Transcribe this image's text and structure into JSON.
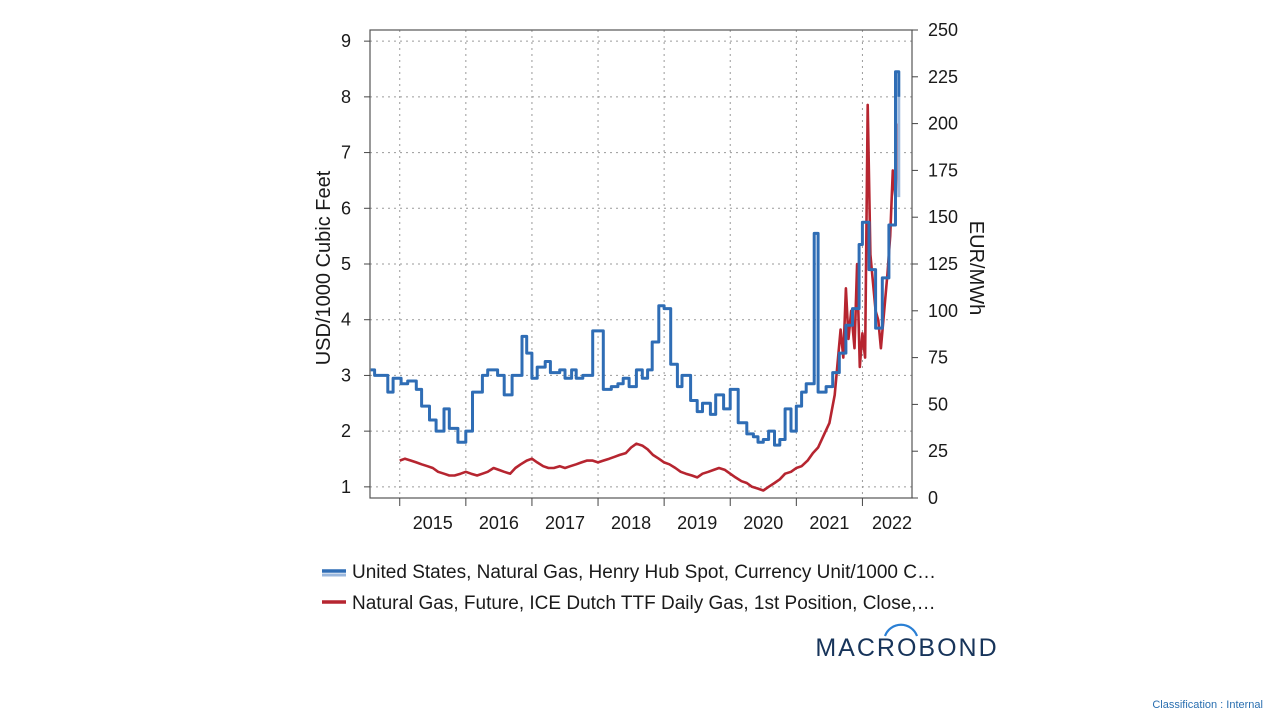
{
  "chart_data": {
    "type": "line",
    "y_left": {
      "label": "USD/1000 Cubic Feet",
      "range": [
        0.8,
        9.2
      ],
      "ticks": [
        1,
        2,
        3,
        4,
        5,
        6,
        7,
        8,
        9
      ]
    },
    "y_right": {
      "label": "EUR/MWh",
      "range": [
        0,
        250
      ],
      "ticks": [
        0,
        25,
        50,
        75,
        100,
        125,
        150,
        175,
        200,
        225,
        250
      ]
    },
    "x_axis": {
      "range": [
        2014.55,
        2022.75
      ],
      "tick_labels": [
        "2015",
        "2016",
        "2017",
        "2018",
        "2019",
        "2020",
        "2021",
        "2022"
      ],
      "tick_label_years": [
        2015,
        2016,
        2017,
        2018,
        2019,
        2020,
        2021,
        2022
      ],
      "year_boundaries": [
        2015,
        2016,
        2017,
        2018,
        2019,
        2020,
        2021,
        2022
      ],
      "grid": true
    },
    "series": [
      {
        "name": "United States, Natural Gas, Henry Hub Spot, Currency Unit/1000 C…",
        "axis": "left",
        "step": true,
        "color": "#2f6db5",
        "last_segment_color": "#9ab7dd",
        "x": [
          2014.56,
          2014.62,
          2014.82,
          2014.9,
          2015.02,
          2015.12,
          2015.25,
          2015.33,
          2015.45,
          2015.55,
          2015.67,
          2015.75,
          2015.88,
          2016.0,
          2016.1,
          2016.25,
          2016.33,
          2016.48,
          2016.58,
          2016.7,
          2016.85,
          2016.92,
          2017.0,
          2017.08,
          2017.2,
          2017.28,
          2017.42,
          2017.5,
          2017.6,
          2017.67,
          2017.77,
          2017.92,
          2018.08,
          2018.2,
          2018.3,
          2018.38,
          2018.47,
          2018.58,
          2018.67,
          2018.75,
          2018.82,
          2018.92,
          2019.0,
          2019.1,
          2019.2,
          2019.27,
          2019.4,
          2019.5,
          2019.58,
          2019.7,
          2019.78,
          2019.9,
          2020.0,
          2020.12,
          2020.25,
          2020.35,
          2020.42,
          2020.5,
          2020.58,
          2020.67,
          2020.75,
          2020.83,
          2020.92,
          2021.0,
          2021.08,
          2021.15,
          2021.27,
          2021.33,
          2021.45,
          2021.55,
          2021.65,
          2021.75,
          2021.85,
          2021.95,
          2022.0,
          2022.1,
          2022.2,
          2022.3,
          2022.4,
          2022.5,
          2022.55
        ],
        "values": [
          3.1,
          3.0,
          2.7,
          2.95,
          2.85,
          2.9,
          2.75,
          2.45,
          2.2,
          2.0,
          2.4,
          2.05,
          1.8,
          2.0,
          2.7,
          3.0,
          3.1,
          3.0,
          2.65,
          3.0,
          3.7,
          3.4,
          2.95,
          3.15,
          3.25,
          3.05,
          3.1,
          2.95,
          3.1,
          2.95,
          3.0,
          3.8,
          2.75,
          2.8,
          2.85,
          2.95,
          2.8,
          3.1,
          2.95,
          3.1,
          3.6,
          4.25,
          4.2,
          3.2,
          2.8,
          3.0,
          2.55,
          2.35,
          2.5,
          2.3,
          2.65,
          2.4,
          2.75,
          2.15,
          1.95,
          1.9,
          1.8,
          1.85,
          2.0,
          1.75,
          1.85,
          2.4,
          2.0,
          2.45,
          2.7,
          2.85,
          5.55,
          2.7,
          2.8,
          3.05,
          3.4,
          3.9,
          4.2,
          5.35,
          5.75,
          4.9,
          3.85,
          4.75,
          5.7,
          8.45,
          8.0
        ]
      },
      {
        "name": "Natural Gas, Future, ICE Dutch TTF Daily Gas, 1st Position, Close,…",
        "axis": "right",
        "step": false,
        "color": "#b62530",
        "x": [
          2015.0,
          2015.08,
          2015.17,
          2015.25,
          2015.33,
          2015.42,
          2015.5,
          2015.58,
          2015.67,
          2015.75,
          2015.83,
          2015.92,
          2016.0,
          2016.08,
          2016.17,
          2016.25,
          2016.33,
          2016.42,
          2016.5,
          2016.58,
          2016.67,
          2016.75,
          2016.83,
          2016.92,
          2017.0,
          2017.08,
          2017.17,
          2017.25,
          2017.33,
          2017.42,
          2017.5,
          2017.58,
          2017.67,
          2017.75,
          2017.83,
          2017.92,
          2018.0,
          2018.08,
          2018.17,
          2018.25,
          2018.33,
          2018.42,
          2018.5,
          2018.58,
          2018.67,
          2018.75,
          2018.83,
          2018.92,
          2019.0,
          2019.08,
          2019.17,
          2019.25,
          2019.33,
          2019.42,
          2019.5,
          2019.58,
          2019.67,
          2019.75,
          2019.83,
          2019.92,
          2020.0,
          2020.08,
          2020.17,
          2020.25,
          2020.33,
          2020.42,
          2020.5,
          2020.58,
          2020.67,
          2020.75,
          2020.83,
          2020.92,
          2021.0,
          2021.08,
          2021.17,
          2021.25,
          2021.33,
          2021.42,
          2021.5,
          2021.58,
          2021.67,
          2021.71,
          2021.75,
          2021.79,
          2021.83,
          2021.88,
          2021.92,
          2021.96,
          2022.0,
          2022.04,
          2022.08,
          2022.12,
          2022.16,
          2022.2,
          2022.24,
          2022.28,
          2022.33,
          2022.38,
          2022.42,
          2022.46,
          2022.5,
          2022.54
        ],
        "values": [
          20,
          21,
          20,
          19,
          18,
          17,
          16,
          14,
          13,
          12,
          12,
          13,
          14,
          13,
          12,
          13,
          14,
          16,
          15,
          14,
          13,
          16,
          18,
          20,
          21,
          19,
          17,
          16,
          16,
          17,
          16,
          17,
          18,
          19,
          20,
          20,
          19,
          20,
          21,
          22,
          23,
          24,
          27,
          29,
          28,
          26,
          23,
          21,
          19,
          18,
          16,
          14,
          13,
          12,
          11,
          13,
          14,
          15,
          16,
          15,
          13,
          11,
          9,
          8,
          6,
          5,
          4,
          6,
          8,
          10,
          13,
          14,
          16,
          17,
          20,
          24,
          27,
          34,
          40,
          55,
          90,
          75,
          112,
          85,
          100,
          80,
          125,
          70,
          88,
          75,
          210,
          130,
          115,
          100,
          95,
          80,
          100,
          120,
          140,
          175,
          160,
          200
        ]
      }
    ],
    "legend": {
      "position": "bottom",
      "entries": [
        "United States, Natural Gas, Henry Hub Spot, Currency Unit/1000 C…",
        "Natural Gas, Future, ICE Dutch TTF Daily Gas, 1st Position, Close,…"
      ]
    }
  },
  "branding": {
    "logo_text": "MACROBOND",
    "logo_color": "#17345a",
    "logo_accent": "#2a7fd4"
  },
  "footer": {
    "classification": "Classification : Internal"
  }
}
